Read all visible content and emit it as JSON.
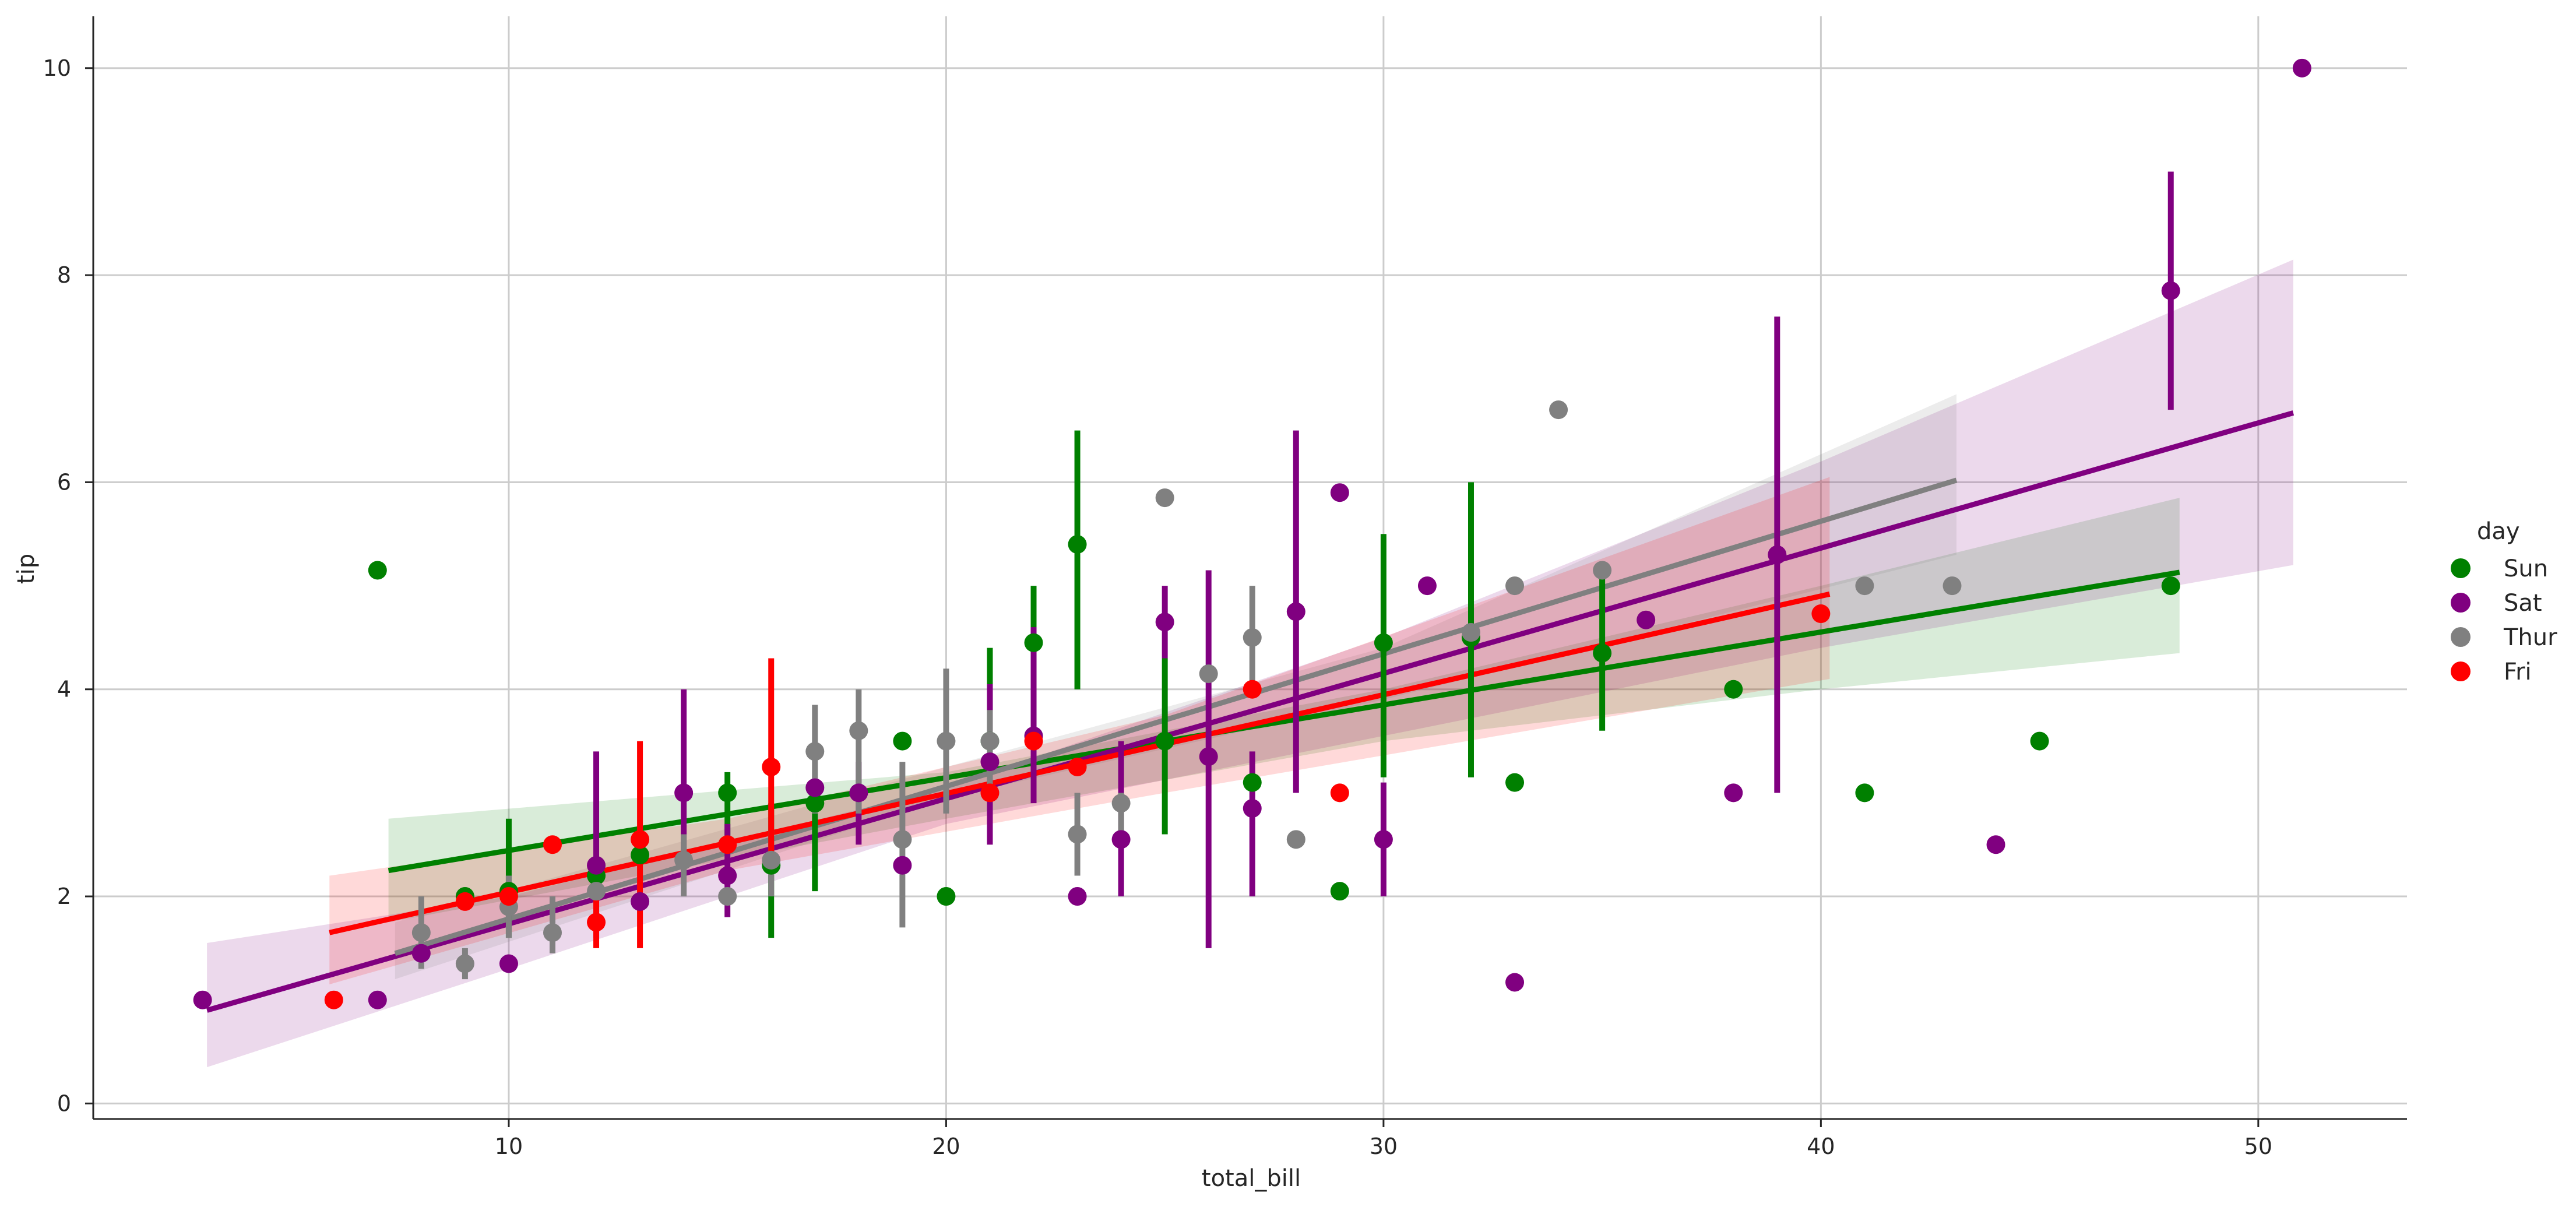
{
  "chart_data": {
    "type": "scatter",
    "title": "",
    "xlabel": "total_bill",
    "ylabel": "tip",
    "xlim": [
      0.5,
      53.4
    ],
    "ylim": [
      -0.15,
      10.5
    ],
    "xticks": [
      10,
      20,
      30,
      40,
      50
    ],
    "yticks": [
      0,
      2,
      4,
      6,
      8,
      10
    ],
    "grid": true,
    "legend": {
      "title": "day",
      "placement": "right"
    },
    "series": [
      {
        "name": "Sun",
        "color": "#008000",
        "points": [
          {
            "x": 7,
            "y": 5.15
          },
          {
            "x": 9,
            "y": 2
          },
          {
            "x": 10,
            "y": 2.05,
            "lo": 1.6,
            "hi": 2.75
          },
          {
            "x": 12,
            "y": 2.2
          },
          {
            "x": 13,
            "y": 2.4
          },
          {
            "x": 15,
            "y": 3.0,
            "lo": 2.5,
            "hi": 3.2
          },
          {
            "x": 16,
            "y": 2.3,
            "lo": 1.6,
            "hi": 2.9
          },
          {
            "x": 17,
            "y": 2.9,
            "lo": 2.05,
            "hi": 3.0
          },
          {
            "x": 19,
            "y": 3.5
          },
          {
            "x": 20,
            "y": 2.0
          },
          {
            "x": 21,
            "y": 3.5,
            "lo": 3.0,
            "hi": 4.4
          },
          {
            "x": 22,
            "y": 4.45,
            "lo": 3.6,
            "hi": 5.0
          },
          {
            "x": 23,
            "y": 5.4,
            "lo": 4.0,
            "hi": 6.5
          },
          {
            "x": 25,
            "y": 3.5,
            "lo": 2.6,
            "hi": 4.3
          },
          {
            "x": 27,
            "y": 3.1
          },
          {
            "x": 29,
            "y": 2.05
          },
          {
            "x": 30,
            "y": 4.45,
            "lo": 3.15,
            "hi": 5.5
          },
          {
            "x": 32,
            "y": 4.5,
            "lo": 3.15,
            "hi": 6.0
          },
          {
            "x": 33,
            "y": 3.1
          },
          {
            "x": 35,
            "y": 4.35,
            "lo": 3.6,
            "hi": 5.15
          },
          {
            "x": 38,
            "y": 4.0
          },
          {
            "x": 41,
            "y": 3.0
          },
          {
            "x": 45,
            "y": 3.5
          },
          {
            "x": 48,
            "y": 5.0
          }
        ],
        "fit": {
          "x0": 7.25,
          "y0": 2.25,
          "x1": 48.2,
          "y1": 5.13
        },
        "ci": {
          "x": [
            7.25,
            20,
            30,
            40,
            48.2
          ],
          "lo": [
            1.75,
            2.75,
            3.5,
            4.0,
            4.35
          ],
          "hi": [
            2.75,
            3.2,
            4.0,
            5.0,
            5.85
          ]
        }
      },
      {
        "name": "Sat",
        "color": "#800080",
        "points": [
          {
            "x": 3,
            "y": 1.0
          },
          {
            "x": 7,
            "y": 1.0
          },
          {
            "x": 8,
            "y": 1.45
          },
          {
            "x": 10,
            "y": 1.35
          },
          {
            "x": 12,
            "y": 2.3,
            "lo": 1.6,
            "hi": 3.4
          },
          {
            "x": 13,
            "y": 1.95
          },
          {
            "x": 14,
            "y": 3.0,
            "lo": 2.2,
            "hi": 4.0
          },
          {
            "x": 15,
            "y": 2.2,
            "lo": 1.8,
            "hi": 2.7
          },
          {
            "x": 17,
            "y": 3.05
          },
          {
            "x": 18,
            "y": 3.0,
            "lo": 2.5,
            "hi": 3.3
          },
          {
            "x": 19,
            "y": 2.3
          },
          {
            "x": 21,
            "y": 3.3,
            "lo": 2.5,
            "hi": 4.05
          },
          {
            "x": 22,
            "y": 3.55,
            "lo": 2.9,
            "hi": 4.6
          },
          {
            "x": 23,
            "y": 2.0
          },
          {
            "x": 24,
            "y": 2.55,
            "lo": 2.0,
            "hi": 3.5
          },
          {
            "x": 25,
            "y": 4.65,
            "lo": 4.3,
            "hi": 5.0
          },
          {
            "x": 26,
            "y": 3.35,
            "lo": 1.5,
            "hi": 5.15
          },
          {
            "x": 27,
            "y": 2.85,
            "lo": 2.0,
            "hi": 3.4
          },
          {
            "x": 28,
            "y": 4.75,
            "lo": 3.0,
            "hi": 6.5
          },
          {
            "x": 29,
            "y": 5.9
          },
          {
            "x": 30,
            "y": 2.55,
            "lo": 2.0,
            "hi": 3.1
          },
          {
            "x": 31,
            "y": 5.0
          },
          {
            "x": 33,
            "y": 1.17
          },
          {
            "x": 36,
            "y": 4.67
          },
          {
            "x": 38,
            "y": 3.0
          },
          {
            "x": 39,
            "y": 5.3,
            "lo": 3.0,
            "hi": 7.6
          },
          {
            "x": 44,
            "y": 2.5
          },
          {
            "x": 48,
            "y": 7.85,
            "lo": 6.7,
            "hi": 9.0
          },
          {
            "x": 51,
            "y": 10.0
          }
        ],
        "fit": {
          "x0": 3.1,
          "y0": 0.9,
          "x1": 50.8,
          "y1": 6.67
        },
        "ci": {
          "x": [
            3.1,
            10,
            20,
            30,
            40,
            50.8
          ],
          "lo": [
            0.35,
            1.3,
            2.7,
            3.55,
            4.4,
            5.2
          ],
          "hi": [
            1.55,
            2.0,
            3.05,
            4.5,
            6.2,
            8.15
          ]
        }
      },
      {
        "name": "Thur",
        "color": "#808080",
        "points": [
          {
            "x": 8,
            "y": 1.65,
            "lo": 1.3,
            "hi": 2.0
          },
          {
            "x": 9,
            "y": 1.35,
            "lo": 1.2,
            "hi": 1.5
          },
          {
            "x": 10,
            "y": 1.9,
            "lo": 1.6,
            "hi": 2.2
          },
          {
            "x": 11,
            "y": 1.65,
            "lo": 1.45,
            "hi": 2.0
          },
          {
            "x": 12,
            "y": 2.05
          },
          {
            "x": 14,
            "y": 2.35,
            "lo": 2.0,
            "hi": 2.6
          },
          {
            "x": 15,
            "y": 2.0
          },
          {
            "x": 16,
            "y": 2.35,
            "lo": 2.0,
            "hi": 2.7
          },
          {
            "x": 17,
            "y": 3.4,
            "lo": 2.8,
            "hi": 3.85
          },
          {
            "x": 18,
            "y": 3.6,
            "lo": 2.8,
            "hi": 4.0
          },
          {
            "x": 19,
            "y": 2.55,
            "lo": 1.7,
            "hi": 3.3
          },
          {
            "x": 20,
            "y": 3.5,
            "lo": 2.8,
            "hi": 4.2
          },
          {
            "x": 21,
            "y": 3.5,
            "lo": 3.0,
            "hi": 3.8
          },
          {
            "x": 23,
            "y": 2.6,
            "lo": 2.2,
            "hi": 3.0
          },
          {
            "x": 24,
            "y": 2.9,
            "lo": 2.5,
            "hi": 3.0
          },
          {
            "x": 25,
            "y": 5.85
          },
          {
            "x": 26,
            "y": 4.15
          },
          {
            "x": 27,
            "y": 4.5,
            "lo": 4.0,
            "hi": 5.0
          },
          {
            "x": 28,
            "y": 2.55
          },
          {
            "x": 32,
            "y": 4.55
          },
          {
            "x": 33,
            "y": 5.0
          },
          {
            "x": 34,
            "y": 6.7
          },
          {
            "x": 35,
            "y": 5.15
          },
          {
            "x": 41,
            "y": 5.0
          },
          {
            "x": 43,
            "y": 5.0
          }
        ],
        "fit": {
          "x0": 7.4,
          "y0": 1.45,
          "x1": 43.1,
          "y1": 6.02
        },
        "ci": {
          "x": [
            7.4,
            20,
            30,
            43.1
          ],
          "lo": [
            1.2,
            2.95,
            3.9,
            5.3
          ],
          "hi": [
            1.75,
            3.25,
            4.4,
            6.85
          ]
        }
      },
      {
        "name": "Fri",
        "color": "#ff0000",
        "points": [
          {
            "x": 6,
            "y": 1.0
          },
          {
            "x": 9,
            "y": 1.95
          },
          {
            "x": 10,
            "y": 2.0
          },
          {
            "x": 11,
            "y": 2.5
          },
          {
            "x": 12,
            "y": 1.75,
            "lo": 1.5,
            "hi": 2.0
          },
          {
            "x": 13,
            "y": 2.55,
            "lo": 1.5,
            "hi": 3.5
          },
          {
            "x": 15,
            "y": 2.5
          },
          {
            "x": 16,
            "y": 3.25,
            "lo": 2.25,
            "hi": 4.3
          },
          {
            "x": 21,
            "y": 3.0
          },
          {
            "x": 22,
            "y": 3.5
          },
          {
            "x": 23,
            "y": 3.25
          },
          {
            "x": 27,
            "y": 4.0
          },
          {
            "x": 29,
            "y": 3.0
          },
          {
            "x": 40,
            "y": 4.73
          }
        ],
        "fit": {
          "x0": 5.9,
          "y0": 1.65,
          "x1": 40.2,
          "y1": 4.92
        },
        "ci": {
          "x": [
            5.9,
            15,
            25,
            40.2
          ],
          "lo": [
            1.15,
            2.25,
            3.0,
            4.1
          ],
          "hi": [
            2.2,
            2.75,
            3.75,
            6.05
          ]
        }
      }
    ]
  }
}
